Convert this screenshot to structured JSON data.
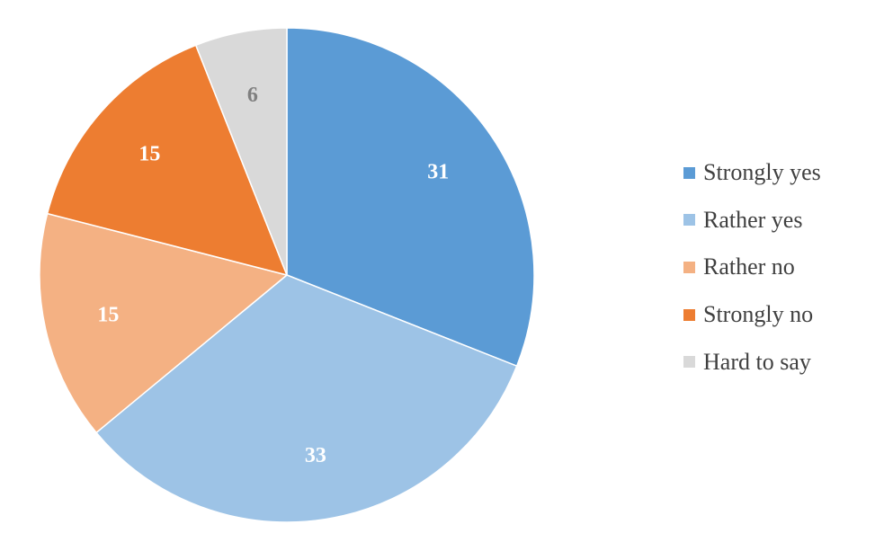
{
  "chart_data": {
    "type": "pie",
    "start_angle_deg": 0,
    "direction": "clockwise",
    "slices": [
      {
        "label": "Strongly yes",
        "value": 31,
        "color": "#5B9BD5",
        "label_color": "#ffffff",
        "label_bold": true
      },
      {
        "label": "Rather yes",
        "value": 33,
        "color": "#9DC3E6",
        "label_color": "#ffffff",
        "label_bold": true
      },
      {
        "label": "Rather no",
        "value": 15,
        "color": "#F4B183",
        "label_color": "#ffffff",
        "label_bold": true
      },
      {
        "label": "Strongly no",
        "value": 15,
        "color": "#ED7D31",
        "label_color": "#ffffff",
        "label_bold": true
      },
      {
        "label": "Hard to say",
        "value": 6,
        "color": "#D9D9D9",
        "label_color": "#7F7F7F",
        "label_bold": false
      }
    ],
    "legend_position": "right"
  }
}
